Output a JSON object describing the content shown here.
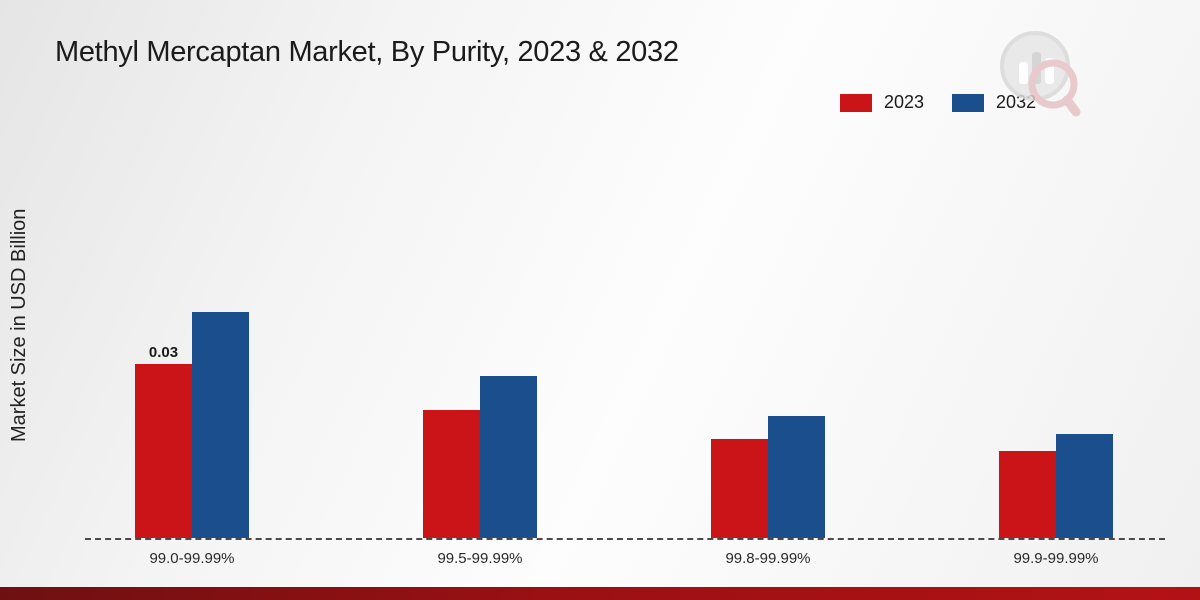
{
  "title": "Methyl Mercaptan Market, By Purity, 2023 & 2032",
  "ylabel": "Market Size in USD Billion",
  "legend": [
    {
      "label": "2023",
      "color": "#cb1417"
    },
    {
      "label": "2032",
      "color": "#1b4e8d"
    }
  ],
  "chart_data": {
    "type": "bar",
    "title": "Methyl Mercaptan Market, By Purity, 2023 & 2032",
    "xlabel": "",
    "ylabel": "Market Size in USD Billion",
    "categories": [
      "99.0-99.99%",
      "99.5-99.99%",
      "99.8-99.99%",
      "99.9-99.99%"
    ],
    "series": [
      {
        "name": "2023",
        "color": "#cb1417",
        "values": [
          0.03,
          0.022,
          0.017,
          0.015
        ]
      },
      {
        "name": "2032",
        "color": "#1b4e8d",
        "values": [
          0.039,
          0.028,
          0.021,
          0.018
        ]
      }
    ],
    "annotations": [
      {
        "series": "2023",
        "category": "99.0-99.99%",
        "text": "0.03"
      }
    ],
    "ylim": [
      0,
      0.045
    ],
    "grid": false,
    "legend_position": "top-right",
    "baseline_style": "dashed"
  }
}
